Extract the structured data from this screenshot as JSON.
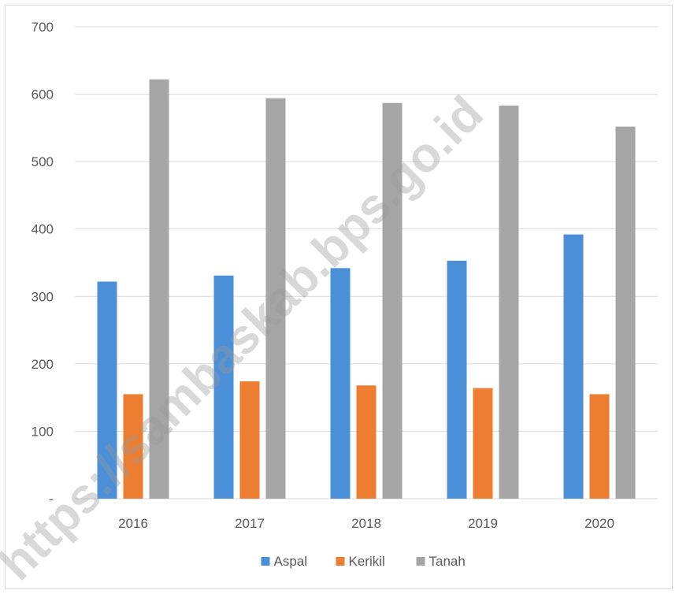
{
  "chart_data": {
    "type": "bar",
    "categories": [
      "2016",
      "2017",
      "2018",
      "2019",
      "2020"
    ],
    "series": [
      {
        "name": "Aspal",
        "color": "#4a8fd8",
        "values": [
          322,
          331,
          342,
          353,
          392
        ]
      },
      {
        "name": "Kerikil",
        "color": "#ed7d31",
        "values": [
          155,
          174,
          168,
          164,
          155
        ]
      },
      {
        "name": "Tanah",
        "color": "#a5a5a5",
        "values": [
          622,
          594,
          587,
          583,
          552
        ]
      }
    ],
    "ylim": [
      0,
      700
    ],
    "yticks": [
      "-",
      "100",
      "200",
      "300",
      "400",
      "500",
      "600",
      "700"
    ],
    "ytick_values": [
      0,
      100,
      200,
      300,
      400,
      500,
      600,
      700
    ],
    "grid": true,
    "legend": "bottom",
    "title": "",
    "xlabel": "",
    "ylabel": ""
  },
  "watermark": "https://sambaskab.bps.go.id"
}
